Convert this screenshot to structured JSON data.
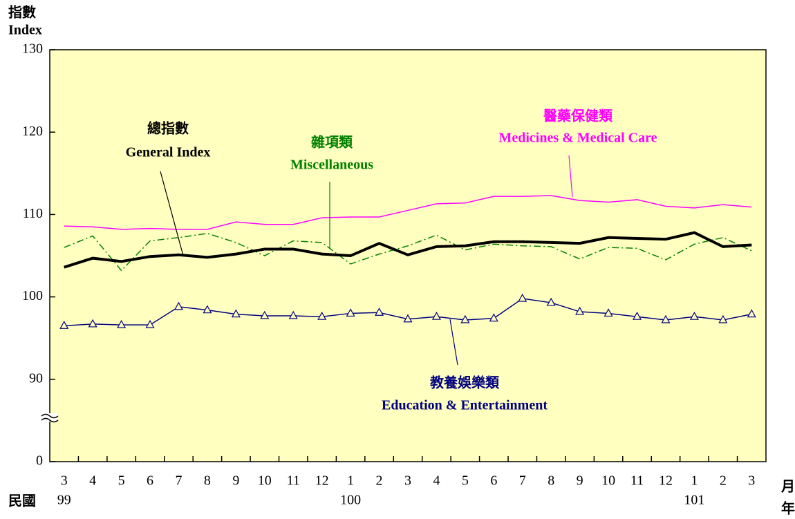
{
  "chart_data": {
    "type": "line",
    "y_label_zh": "指數",
    "y_label": "Index",
    "x_label_left": "民國",
    "x_label_right_top": "月",
    "x_label_right_bottom": "年",
    "categories": [
      "3",
      "4",
      "5",
      "6",
      "7",
      "8",
      "9",
      "10",
      "11",
      "12",
      "1",
      "2",
      "3",
      "4",
      "5",
      "6",
      "7",
      "8",
      "9",
      "10",
      "11",
      "12",
      "1",
      "2",
      "3"
    ],
    "years": [
      "99",
      null,
      null,
      null,
      null,
      null,
      null,
      null,
      null,
      null,
      "100",
      null,
      null,
      null,
      null,
      null,
      null,
      null,
      null,
      null,
      null,
      null,
      "101",
      null,
      null
    ],
    "ylim": [
      0,
      130
    ],
    "yticks": [
      0,
      90,
      100,
      110,
      120,
      130
    ],
    "axis_break": true,
    "background": "#ffffc0",
    "series": [
      {
        "name": "Medicines & Medical Care",
        "name_zh": "醫藥保健類",
        "color": "#ff00ff",
        "style": "solid",
        "width": 1.5,
        "values": [
          108.6,
          108.5,
          108.2,
          108.3,
          108.2,
          108.2,
          109.1,
          108.8,
          108.8,
          109.6,
          109.7,
          109.7,
          110.5,
          111.3,
          111.4,
          112.2,
          112.2,
          112.3,
          111.7,
          111.5,
          111.8,
          111.0,
          110.8,
          111.2,
          110.9
        ]
      },
      {
        "name": "Miscellaneous",
        "name_zh": "雜項類",
        "color": "#008000",
        "style": "dashdot",
        "width": 1.5,
        "values": [
          106.0,
          107.4,
          103.2,
          106.8,
          107.2,
          107.7,
          106.6,
          105.0,
          106.8,
          106.6,
          104.0,
          105.2,
          106.2,
          107.5,
          105.7,
          106.4,
          106.2,
          106.1,
          104.6,
          106.0,
          105.9,
          104.5,
          106.4,
          107.2,
          105.6
        ]
      },
      {
        "name": "General Index",
        "name_zh": "總指數",
        "color": "#000000",
        "style": "solid",
        "width": 4,
        "values": [
          103.6,
          104.7,
          104.3,
          104.9,
          105.1,
          104.8,
          105.2,
          105.8,
          105.8,
          105.2,
          105.0,
          106.5,
          105.1,
          106.1,
          106.2,
          106.7,
          106.7,
          106.6,
          106.5,
          107.2,
          107.1,
          107.0,
          107.8,
          106.1,
          106.3
        ]
      },
      {
        "name": "Education & Entertainment",
        "name_zh": "教養娛樂類",
        "color": "#000080",
        "style": "solid",
        "width": 1.5,
        "marker": "triangle",
        "values": [
          96.5,
          96.7,
          96.6,
          96.6,
          98.8,
          98.4,
          97.9,
          97.7,
          97.7,
          97.6,
          98.0,
          98.1,
          97.3,
          97.6,
          97.2,
          97.4,
          99.8,
          99.3,
          98.2,
          98.0,
          97.6,
          97.2,
          97.6,
          97.2,
          97.9
        ]
      }
    ]
  }
}
